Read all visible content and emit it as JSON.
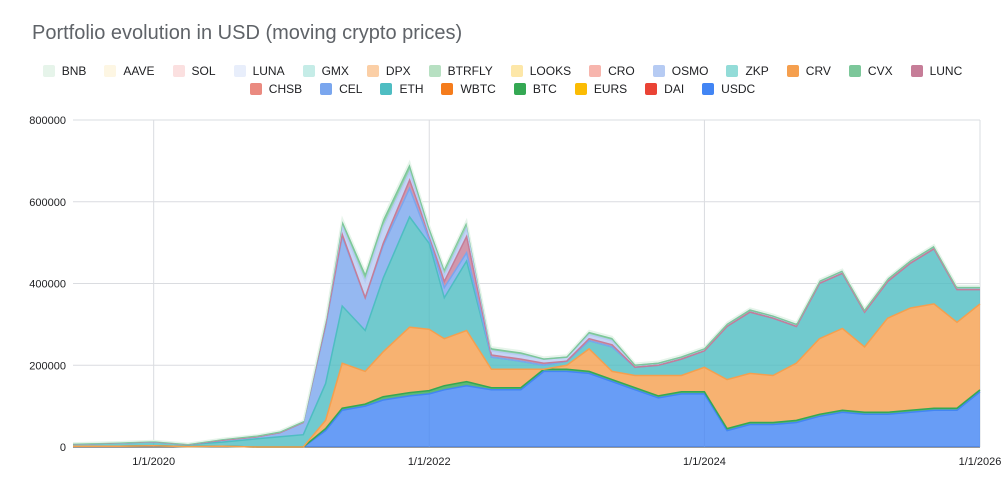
{
  "chart_data": {
    "type": "area",
    "stacked": true,
    "title": "Portfolio evolution in USD (moving crypto prices)",
    "xlabel": "",
    "ylabel": "",
    "x_range": [
      "2019-06-01",
      "2026-01-01"
    ],
    "ylim": [
      0,
      800000
    ],
    "y_ticks": [
      0,
      200000,
      400000,
      600000,
      800000
    ],
    "y_tick_labels": [
      "0",
      "200000",
      "400000",
      "600000",
      "800000"
    ],
    "x_ticks": [
      "2020-01-01",
      "2022-01-01",
      "2024-01-01",
      "2026-01-01"
    ],
    "x_tick_labels": [
      "1/1/2020",
      "1/1/2022",
      "1/1/2024",
      "1/1/2026"
    ],
    "grid": true,
    "legend_position": "top",
    "legend": [
      [
        "BNB",
        "AAVE",
        "SOL",
        "LUNA",
        "GMX",
        "DPX",
        "BTRFLY",
        "LOOKS",
        "CRO",
        "OSMO",
        "ZKP",
        "CRV",
        "CVX",
        "LUNC"
      ],
      [
        "CHSB",
        "CEL",
        "ETH",
        "WBTC",
        "BTC",
        "EURS",
        "DAI",
        "USDC"
      ]
    ],
    "legend_colors": {
      "BNB": "#e6f4ea",
      "AAVE": "#fdf6e3",
      "SOL": "#fbe0e0",
      "LUNA": "#e8eefb",
      "GMX": "#c5ece7",
      "DPX": "#fbcfa6",
      "BTRFLY": "#b7e0c2",
      "LOOKS": "#fde7a8",
      "CRO": "#f7b5ad",
      "OSMO": "#b6cbf3",
      "ZKP": "#93dcd8",
      "CRV": "#f59f4e",
      "CVX": "#7cc79a",
      "LUNC": "#c67d98",
      "CHSB": "#ea8a80",
      "CEL": "#7aa6ee",
      "ETH": "#4ebdc2",
      "WBTC": "#f57c1c",
      "BTC": "#34a853",
      "EURS": "#fbbc04",
      "DAI": "#ea4335",
      "USDC": "#4285f4"
    },
    "x": [
      "2019-06-01",
      "2019-10-01",
      "2020-01-01",
      "2020-04-01",
      "2020-07-01",
      "2020-10-01",
      "2020-12-01",
      "2021-02-01",
      "2021-04-01",
      "2021-05-15",
      "2021-07-15",
      "2021-09-01",
      "2021-11-10",
      "2022-01-01",
      "2022-02-10",
      "2022-04-10",
      "2022-06-15",
      "2022-09-01",
      "2022-11-01",
      "2023-01-01",
      "2023-03-01",
      "2023-05-01",
      "2023-07-01",
      "2023-09-01",
      "2023-11-01",
      "2024-01-01",
      "2024-03-01",
      "2024-05-01",
      "2024-07-01",
      "2024-09-01",
      "2024-11-01",
      "2025-01-01",
      "2025-03-01",
      "2025-05-01",
      "2025-07-01",
      "2025-09-01",
      "2025-11-01",
      "2026-01-01"
    ],
    "series": [
      {
        "name": "USDC",
        "values": [
          2000,
          2000,
          3000,
          1000,
          2000,
          0,
          0,
          0,
          40000,
          90000,
          100000,
          115000,
          125000,
          130000,
          140000,
          150000,
          140000,
          140000,
          185000,
          185000,
          180000,
          160000,
          140000,
          120000,
          130000,
          130000,
          40000,
          55000,
          55000,
          60000,
          75000,
          85000,
          80000,
          80000,
          85000,
          90000,
          90000,
          135000
        ]
      },
      {
        "name": "BTC",
        "values": [
          0,
          0,
          0,
          0,
          0,
          0,
          0,
          0,
          5000,
          5000,
          5000,
          8000,
          8000,
          8000,
          10000,
          10000,
          5000,
          5000,
          5000,
          5000,
          5000,
          5000,
          5000,
          5000,
          5000,
          5000,
          5000,
          5000,
          5000,
          5000,
          5000,
          5000,
          5000,
          5000,
          5000,
          5000,
          5000,
          5000
        ]
      },
      {
        "name": "CRV",
        "values": [
          0,
          0,
          0,
          0,
          0,
          0,
          0,
          0,
          20000,
          110000,
          80000,
          110000,
          160000,
          150000,
          115000,
          125000,
          45000,
          45000,
          0,
          10000,
          55000,
          20000,
          30000,
          50000,
          40000,
          60000,
          120000,
          120000,
          115000,
          140000,
          185000,
          200000,
          160000,
          230000,
          250000,
          255000,
          210000,
          210000
        ]
      },
      {
        "name": "ETH",
        "values": [
          5000,
          8000,
          10000,
          5000,
          10000,
          20000,
          25000,
          30000,
          90000,
          140000,
          100000,
          180000,
          270000,
          210000,
          100000,
          170000,
          30000,
          20000,
          10000,
          10000,
          20000,
          60000,
          20000,
          25000,
          40000,
          40000,
          130000,
          150000,
          140000,
          90000,
          135000,
          135000,
          85000,
          90000,
          110000,
          135000,
          80000,
          35000
        ]
      },
      {
        "name": "CEL",
        "values": [
          0,
          0,
          0,
          0,
          5000,
          5000,
          10000,
          30000,
          140000,
          170000,
          80000,
          80000,
          70000,
          10000,
          25000,
          20000,
          0,
          0,
          0,
          0,
          0,
          0,
          0,
          0,
          0,
          0,
          0,
          0,
          0,
          0,
          0,
          0,
          0,
          0,
          0,
          0,
          0,
          0
        ]
      },
      {
        "name": "LUNC",
        "values": [
          0,
          0,
          0,
          0,
          0,
          0,
          0,
          0,
          5000,
          5000,
          0,
          5000,
          20000,
          10000,
          15000,
          40000,
          5000,
          5000,
          5000,
          0,
          5000,
          5000,
          0,
          0,
          0,
          0,
          0,
          0,
          0,
          0,
          0,
          0,
          0,
          0,
          0,
          0,
          0,
          0
        ]
      },
      {
        "name": "OSMO",
        "values": [
          1000,
          1000,
          1000,
          1000,
          2000,
          2000,
          2000,
          2000,
          10000,
          20000,
          40000,
          40000,
          20000,
          5000,
          15000,
          20000,
          10000,
          10000,
          10000,
          10000,
          10000,
          10000,
          5000,
          5000,
          5000,
          5000,
          5000,
          5000,
          5000,
          5000,
          5000,
          5000,
          5000,
          5000,
          5000,
          5000,
          5000,
          5000
        ]
      },
      {
        "name": "CVX",
        "values": [
          0,
          0,
          0,
          0,
          0,
          0,
          0,
          0,
          0,
          10000,
          15000,
          15000,
          15000,
          10000,
          15000,
          15000,
          5000,
          5000,
          0,
          0,
          5000,
          5000,
          0,
          0,
          0,
          0,
          0,
          0,
          0,
          0,
          0,
          0,
          0,
          0,
          0,
          0,
          0,
          0
        ]
      },
      {
        "name": "BNB",
        "values": [
          2000,
          2000,
          2000,
          2000,
          2000,
          3000,
          3000,
          3000,
          5000,
          10000,
          10000,
          10000,
          10000,
          10000,
          5000,
          5000,
          5000,
          5000,
          5000,
          5000,
          5000,
          5000,
          5000,
          5000,
          5000,
          5000,
          5000,
          5000,
          5000,
          5000,
          5000,
          5000,
          5000,
          5000,
          5000,
          5000,
          5000,
          5000
        ]
      }
    ]
  }
}
